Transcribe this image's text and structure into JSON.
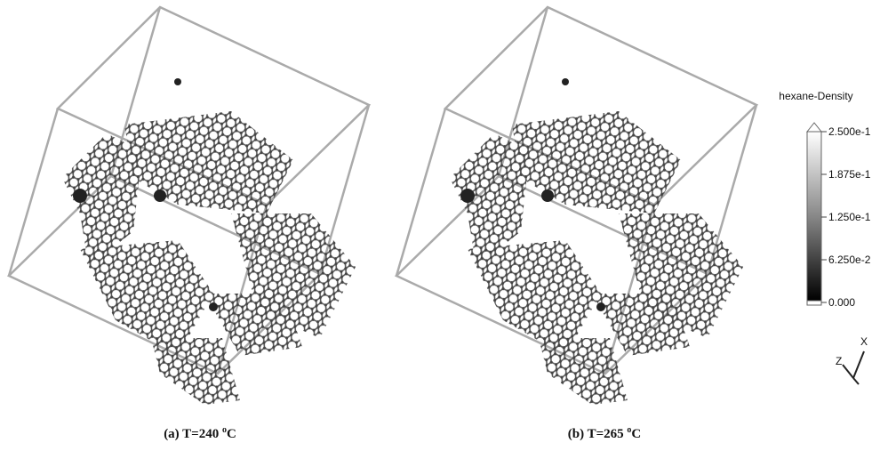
{
  "panels": [
    {
      "label": "(a) T=240 ",
      "superscript": "o",
      "unit": "C"
    },
    {
      "label": "(b) T=265 ",
      "superscript": "o",
      "unit": "C"
    }
  ],
  "colorbar": {
    "title": "hexane-Density",
    "ticks": [
      "2.500e-1",
      "1.875e-1",
      "1.250e-1",
      "6.250e-2",
      "0.000"
    ]
  },
  "axes": {
    "z": "Z",
    "x": "X"
  }
}
